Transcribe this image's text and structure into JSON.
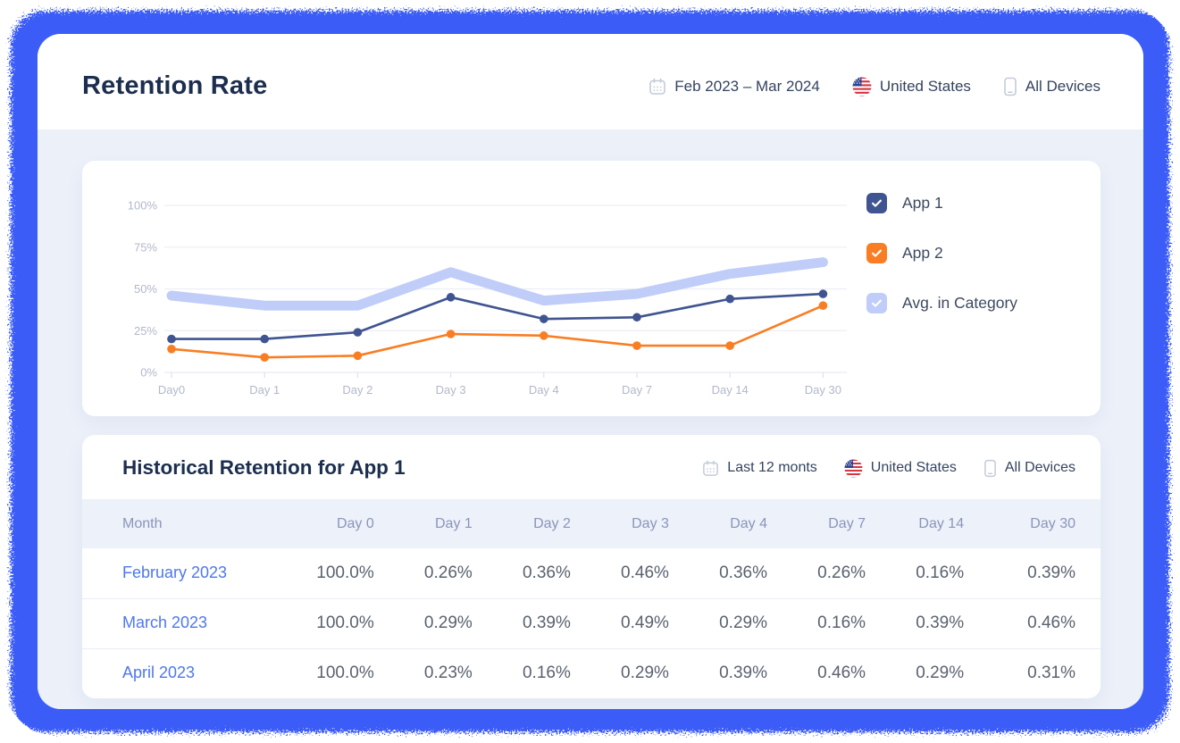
{
  "header": {
    "title": "Retention Rate",
    "date_range": "Feb 2023 – Mar 2024",
    "country": "United States",
    "devices": "All Devices"
  },
  "chart_data": {
    "type": "line",
    "x": [
      "Day0",
      "Day 1",
      "Day 2",
      "Day 3",
      "Day 4",
      "Day 7",
      "Day 14",
      "Day 30"
    ],
    "series": [
      {
        "name": "App 1",
        "color": "#3F5490",
        "checked": true,
        "style": "line",
        "values": [
          20,
          20,
          24,
          45,
          32,
          33,
          44,
          47
        ]
      },
      {
        "name": "App 2",
        "color": "#F97E23",
        "checked": true,
        "style": "line",
        "values": [
          14,
          9,
          10,
          23,
          22,
          16,
          16,
          40
        ]
      },
      {
        "name": "Avg. in Category",
        "color": "#C0CDF8",
        "checked": true,
        "style": "band",
        "values": [
          46,
          40,
          40,
          60,
          43,
          47,
          59,
          66
        ]
      }
    ],
    "ylim": [
      0,
      100
    ],
    "yticks": [
      {
        "value": 0,
        "label": "0%"
      },
      {
        "value": 25,
        "label": "25%"
      },
      {
        "value": 50,
        "label": "50%"
      },
      {
        "value": 75,
        "label": "75%"
      },
      {
        "value": 100,
        "label": "100%"
      }
    ],
    "ylabel": "",
    "xlabel": "",
    "grid": true,
    "legend_position": "right"
  },
  "table_card": {
    "title": "Historical Retention for App 1",
    "period": "Last 12 monts",
    "country": "United States",
    "devices": "All Devices",
    "columns": [
      "Month",
      "Day 0",
      "Day 1",
      "Day 2",
      "Day 3",
      "Day 4",
      "Day 7",
      "Day 14",
      "Day 30"
    ],
    "rows": [
      {
        "month": "February 2023",
        "values": [
          "100.0%",
          "0.26%",
          "0.36%",
          "0.46%",
          "0.36%",
          "0.26%",
          "0.16%",
          "0.39%"
        ]
      },
      {
        "month": "March 2023",
        "values": [
          "100.0%",
          "0.29%",
          "0.39%",
          "0.49%",
          "0.29%",
          "0.16%",
          "0.39%",
          "0.46%"
        ]
      },
      {
        "month": "April 2023",
        "values": [
          "100.0%",
          "0.23%",
          "0.16%",
          "0.29%",
          "0.39%",
          "0.46%",
          "0.29%",
          "0.31%"
        ]
      }
    ]
  },
  "colors": {
    "frame_blue": "#3B5CF6",
    "panel_bg": "#EBF0F9",
    "title_navy": "#1C2E4E",
    "app1_navy": "#3F5490",
    "app2_orange": "#F97E23",
    "avg_periwinkle": "#C0CDF8",
    "month_link_blue": "#4D77F2",
    "axis_label_gray": "#B1B8CA",
    "gridline": "#EDEFF6",
    "table_header_bg": "#EDF1FA",
    "table_header_text": "#8A96BA",
    "icon_gray": "#C3CBD9"
  }
}
